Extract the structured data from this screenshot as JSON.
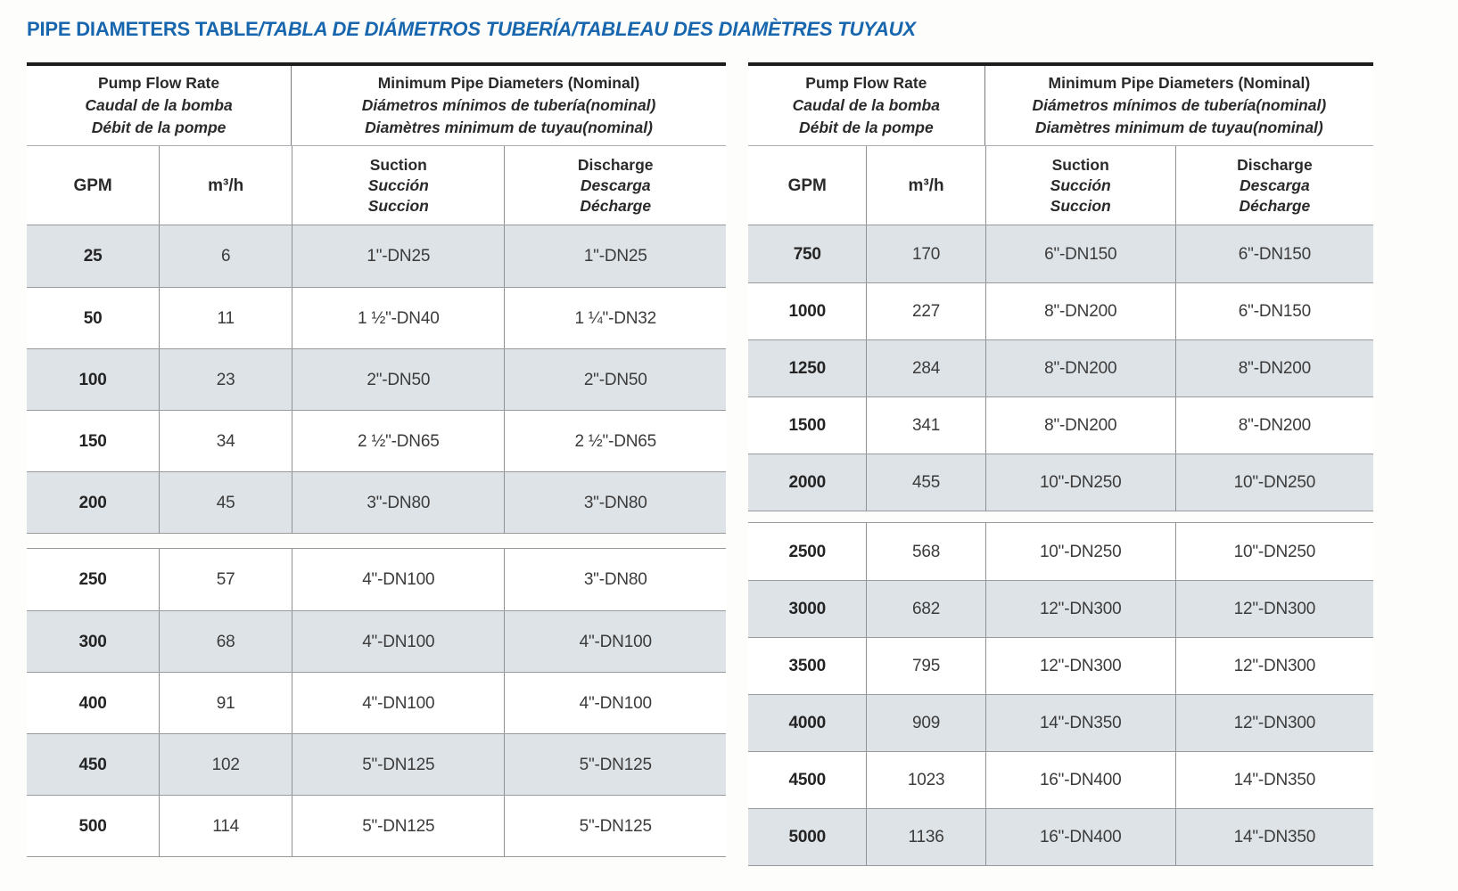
{
  "title": {
    "part_en": "PIPE DIAMETERS TABLE",
    "part_translations": "/TABLA DE DIÁMETROS TUBERÍA/TABLEAU DES DIAMÈTRES TUYAUX"
  },
  "colors": {
    "title_blue": "#1766ae",
    "row_shade": "#dee3e7",
    "grid_line": "#97999b",
    "top_rule": "#1d1d1d"
  },
  "header": {
    "flow": [
      "Pump Flow Rate",
      "Caudal de la bomba",
      "Débit de la pompe"
    ],
    "diameters": [
      "Minimum Pipe Diameters (Nominal)",
      "Diámetros mínimos de tubería(nominal)",
      "Diamètres minimum de tuyau(nominal)"
    ],
    "gpm": "GPM",
    "m3h": "m³/h",
    "suction": [
      "Suction",
      "Succión",
      "Succion"
    ],
    "discharge": [
      "Discharge",
      "Descarga",
      "Décharge"
    ]
  },
  "tables": [
    {
      "name": "left",
      "sections": [
        {
          "rows": [
            [
              "25",
              "6",
              "1\"-DN25",
              "1\"-DN25"
            ],
            [
              "50",
              "11",
              "1 ½\"-DN40",
              "1 ¼\"-DN32"
            ],
            [
              "100",
              "23",
              "2\"-DN50",
              "2\"-DN50"
            ],
            [
              "150",
              "34",
              "2 ½\"-DN65",
              "2 ½\"-DN65"
            ],
            [
              "200",
              "45",
              "3\"-DN80",
              "3\"-DN80"
            ]
          ]
        },
        {
          "rows": [
            [
              "250",
              "57",
              "4\"-DN100",
              "3\"-DN80"
            ],
            [
              "300",
              "68",
              "4\"-DN100",
              "4\"-DN100"
            ],
            [
              "400",
              "91",
              "4\"-DN100",
              "4\"-DN100"
            ],
            [
              "450",
              "102",
              "5\"-DN125",
              "5\"-DN125"
            ],
            [
              "500",
              "114",
              "5\"-DN125",
              "5\"-DN125"
            ]
          ]
        }
      ]
    },
    {
      "name": "right",
      "sections": [
        {
          "rows": [
            [
              "750",
              "170",
              "6\"-DN150",
              "6\"-DN150"
            ],
            [
              "1000",
              "227",
              "8\"-DN200",
              "6\"-DN150"
            ],
            [
              "1250",
              "284",
              "8\"-DN200",
              "8\"-DN200"
            ],
            [
              "1500",
              "341",
              "8\"-DN200",
              "8\"-DN200"
            ],
            [
              "2000",
              "455",
              "10\"-DN250",
              "10\"-DN250"
            ]
          ]
        },
        {
          "rows": [
            [
              "2500",
              "568",
              "10\"-DN250",
              "10\"-DN250"
            ],
            [
              "3000",
              "682",
              "12\"-DN300",
              "12\"-DN300"
            ],
            [
              "3500",
              "795",
              "12\"-DN300",
              "12\"-DN300"
            ],
            [
              "4000",
              "909",
              "14\"-DN350",
              "12\"-DN300"
            ],
            [
              "4500",
              "1023",
              "16\"-DN400",
              "14\"-DN350"
            ],
            [
              "5000",
              "1136",
              "16\"-DN400",
              "14\"-DN350"
            ]
          ]
        }
      ]
    }
  ]
}
